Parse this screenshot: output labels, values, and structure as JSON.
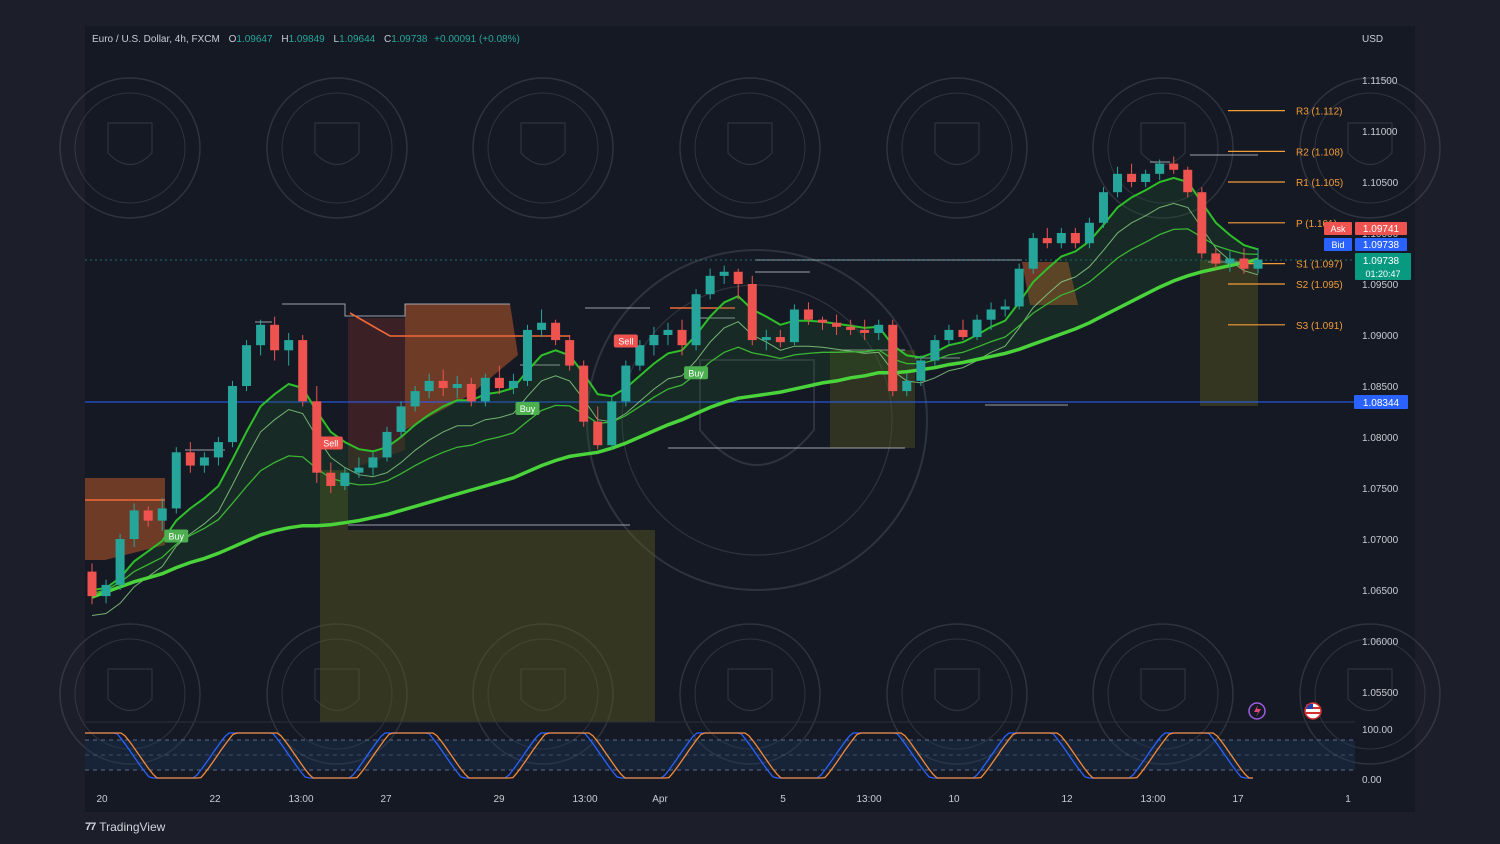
{
  "header": {
    "symbol": "Euro / U.S. Dollar, 4h, FXCM",
    "o_label": "O",
    "o_value": "1.09647",
    "h_label": "H",
    "h_value": "1.09849",
    "l_label": "L",
    "l_value": "1.09644",
    "c_label": "C",
    "c_value": "1.09738",
    "change": "+0.00091 (+0.08%)"
  },
  "price_axis": {
    "currency": "USD",
    "ticks": [
      "1.11500",
      "1.11000",
      "1.10500",
      "1.10000",
      "1.09500",
      "1.09000",
      "1.08500",
      "1.08000",
      "1.07500",
      "1.07000",
      "1.06500",
      "1.06000",
      "1.05500"
    ]
  },
  "pivots": [
    {
      "label": "R3 (1.112)",
      "value": 1.112
    },
    {
      "label": "R2 (1.108)",
      "value": 1.108
    },
    {
      "label": "R1 (1.105)",
      "value": 1.105
    },
    {
      "label": "P (1.101)",
      "value": 1.101
    },
    {
      "label": "S1 (1.097)",
      "value": 1.097
    },
    {
      "label": "S2 (1.095)",
      "value": 1.095
    },
    {
      "label": "S3 (1.091)",
      "value": 1.091
    }
  ],
  "quotes": {
    "ask_label": "Ask",
    "ask_value": "1.09741",
    "bid_label": "Bid",
    "bid_value": "1.09738",
    "last_value": "1.09738",
    "countdown": "01:20:47",
    "hline_value": "1.08344"
  },
  "signals": [
    {
      "label": "Buy",
      "type": "buy",
      "i": 6
    },
    {
      "label": "Sell",
      "type": "sell",
      "i": 17
    },
    {
      "label": "Buy",
      "type": "buy",
      "i": 31
    },
    {
      "label": "Sell",
      "type": "sell",
      "i": 38
    },
    {
      "label": "Buy",
      "type": "buy",
      "i": 43
    }
  ],
  "oscillator": {
    "ticks": [
      "100.00",
      "0.00"
    ]
  },
  "time_axis": {
    "labels": [
      "20",
      "22",
      "13:00",
      "27",
      "29",
      "13:00",
      "Apr",
      "5",
      "13:00",
      "10",
      "12",
      "13:00",
      "17",
      "1"
    ]
  },
  "branding": {
    "name": "TradingView"
  },
  "colors": {
    "up": "#26a69a",
    "down": "#ef5350",
    "ma": "#4ad33a",
    "accent": "#2962ff",
    "pivot": "#f29d38"
  },
  "chart_data": {
    "type": "candlestick",
    "symbol": "Euro / U.S. Dollar",
    "interval": "4h",
    "ylim": [
      1.051,
      1.119
    ],
    "x": [
      "20",
      "22",
      "13:00",
      "27",
      "29",
      "13:00",
      "Apr",
      "5",
      "13:00",
      "10",
      "12",
      "13:00",
      "17",
      "1"
    ],
    "candles": [
      {
        "o": 1.0668,
        "h": 1.0676,
        "l": 1.0636,
        "c": 1.0644
      },
      {
        "o": 1.0644,
        "h": 1.066,
        "l": 1.0637,
        "c": 1.0655
      },
      {
        "o": 1.0655,
        "h": 1.0705,
        "l": 1.065,
        "c": 1.07
      },
      {
        "o": 1.07,
        "h": 1.0735,
        "l": 1.0692,
        "c": 1.0728
      },
      {
        "o": 1.0728,
        "h": 1.0732,
        "l": 1.0712,
        "c": 1.0718
      },
      {
        "o": 1.0718,
        "h": 1.074,
        "l": 1.0708,
        "c": 1.073
      },
      {
        "o": 1.073,
        "h": 1.079,
        "l": 1.0725,
        "c": 1.0785
      },
      {
        "o": 1.0785,
        "h": 1.0795,
        "l": 1.0765,
        "c": 1.0772
      },
      {
        "o": 1.0772,
        "h": 1.0785,
        "l": 1.0765,
        "c": 1.078
      },
      {
        "o": 1.078,
        "h": 1.08,
        "l": 1.0772,
        "c": 1.0795
      },
      {
        "o": 1.0795,
        "h": 1.0855,
        "l": 1.079,
        "c": 1.085
      },
      {
        "o": 1.085,
        "h": 1.0895,
        "l": 1.0845,
        "c": 1.089
      },
      {
        "o": 1.089,
        "h": 1.0915,
        "l": 1.088,
        "c": 1.091
      },
      {
        "o": 1.091,
        "h": 1.0918,
        "l": 1.0875,
        "c": 1.0885
      },
      {
        "o": 1.0885,
        "h": 1.0902,
        "l": 1.087,
        "c": 1.0895
      },
      {
        "o": 1.0895,
        "h": 1.09,
        "l": 1.083,
        "c": 1.0835
      },
      {
        "o": 1.0835,
        "h": 1.085,
        "l": 1.0755,
        "c": 1.0765
      },
      {
        "o": 1.0765,
        "h": 1.0775,
        "l": 1.0745,
        "c": 1.0752
      },
      {
        "o": 1.0752,
        "h": 1.077,
        "l": 1.0748,
        "c": 1.0765
      },
      {
        "o": 1.0765,
        "h": 1.078,
        "l": 1.076,
        "c": 1.077
      },
      {
        "o": 1.077,
        "h": 1.0785,
        "l": 1.0762,
        "c": 1.078
      },
      {
        "o": 1.078,
        "h": 1.081,
        "l": 1.0776,
        "c": 1.0805
      },
      {
        "o": 1.0805,
        "h": 1.0835,
        "l": 1.08,
        "c": 1.083
      },
      {
        "o": 1.083,
        "h": 1.085,
        "l": 1.0825,
        "c": 1.0845
      },
      {
        "o": 1.0845,
        "h": 1.0862,
        "l": 1.0838,
        "c": 1.0855
      },
      {
        "o": 1.0855,
        "h": 1.0866,
        "l": 1.084,
        "c": 1.0848
      },
      {
        "o": 1.0848,
        "h": 1.086,
        "l": 1.0838,
        "c": 1.0852
      },
      {
        "o": 1.0852,
        "h": 1.0858,
        "l": 1.083,
        "c": 1.0835
      },
      {
        "o": 1.0835,
        "h": 1.0862,
        "l": 1.083,
        "c": 1.0858
      },
      {
        "o": 1.0858,
        "h": 1.087,
        "l": 1.0842,
        "c": 1.0848
      },
      {
        "o": 1.0848,
        "h": 1.0862,
        "l": 1.0842,
        "c": 1.0855
      },
      {
        "o": 1.0855,
        "h": 1.091,
        "l": 1.085,
        "c": 1.0905
      },
      {
        "o": 1.0905,
        "h": 1.0925,
        "l": 1.0898,
        "c": 1.0912
      },
      {
        "o": 1.0912,
        "h": 1.0915,
        "l": 1.089,
        "c": 1.0895
      },
      {
        "o": 1.0895,
        "h": 1.09,
        "l": 1.0865,
        "c": 1.087
      },
      {
        "o": 1.087,
        "h": 1.0875,
        "l": 1.081,
        "c": 1.0815
      },
      {
        "o": 1.0815,
        "h": 1.083,
        "l": 1.0788,
        "c": 1.0792
      },
      {
        "o": 1.0792,
        "h": 1.084,
        "l": 1.0788,
        "c": 1.0835
      },
      {
        "o": 1.0835,
        "h": 1.0875,
        "l": 1.083,
        "c": 1.087
      },
      {
        "o": 1.087,
        "h": 1.0895,
        "l": 1.0865,
        "c": 1.089
      },
      {
        "o": 1.089,
        "h": 1.0908,
        "l": 1.088,
        "c": 1.09
      },
      {
        "o": 1.09,
        "h": 1.0912,
        "l": 1.089,
        "c": 1.0905
      },
      {
        "o": 1.0905,
        "h": 1.0915,
        "l": 1.088,
        "c": 1.089
      },
      {
        "o": 1.089,
        "h": 1.0945,
        "l": 1.0885,
        "c": 1.094
      },
      {
        "o": 1.094,
        "h": 1.0965,
        "l": 1.0935,
        "c": 1.0958
      },
      {
        "o": 1.0958,
        "h": 1.0968,
        "l": 1.095,
        "c": 1.0962
      },
      {
        "o": 1.0962,
        "h": 1.0965,
        "l": 1.0935,
        "c": 1.095
      },
      {
        "o": 1.095,
        "h": 1.0958,
        "l": 1.089,
        "c": 1.0895
      },
      {
        "o": 1.0895,
        "h": 1.0905,
        "l": 1.0885,
        "c": 1.0898
      },
      {
        "o": 1.0898,
        "h": 1.0905,
        "l": 1.0888,
        "c": 1.0893
      },
      {
        "o": 1.0893,
        "h": 1.093,
        "l": 1.089,
        "c": 1.0925
      },
      {
        "o": 1.0925,
        "h": 1.0932,
        "l": 1.091,
        "c": 1.0915
      },
      {
        "o": 1.0915,
        "h": 1.0918,
        "l": 1.0905,
        "c": 1.0912
      },
      {
        "o": 1.0912,
        "h": 1.092,
        "l": 1.09,
        "c": 1.0908
      },
      {
        "o": 1.0908,
        "h": 1.0915,
        "l": 1.09,
        "c": 1.0905
      },
      {
        "o": 1.0905,
        "h": 1.0915,
        "l": 1.0895,
        "c": 1.0902
      },
      {
        "o": 1.0902,
        "h": 1.0915,
        "l": 1.0895,
        "c": 1.091
      },
      {
        "o": 1.091,
        "h": 1.0915,
        "l": 1.084,
        "c": 1.0845
      },
      {
        "o": 1.0845,
        "h": 1.0862,
        "l": 1.084,
        "c": 1.0855
      },
      {
        "o": 1.0855,
        "h": 1.088,
        "l": 1.085,
        "c": 1.0875
      },
      {
        "o": 1.0875,
        "h": 1.09,
        "l": 1.087,
        "c": 1.0895
      },
      {
        "o": 1.0895,
        "h": 1.091,
        "l": 1.089,
        "c": 1.0905
      },
      {
        "o": 1.0905,
        "h": 1.0915,
        "l": 1.0895,
        "c": 1.0898
      },
      {
        "o": 1.0898,
        "h": 1.092,
        "l": 1.0895,
        "c": 1.0915
      },
      {
        "o": 1.0915,
        "h": 1.0932,
        "l": 1.0905,
        "c": 1.0925
      },
      {
        "o": 1.0925,
        "h": 1.0935,
        "l": 1.0918,
        "c": 1.0928
      },
      {
        "o": 1.0928,
        "h": 1.097,
        "l": 1.0925,
        "c": 1.0965
      },
      {
        "o": 1.0965,
        "h": 1.1,
        "l": 1.096,
        "c": 1.0995
      },
      {
        "o": 1.0995,
        "h": 1.1005,
        "l": 1.0985,
        "c": 1.099
      },
      {
        "o": 1.099,
        "h": 1.1005,
        "l": 1.0985,
        "c": 1.1
      },
      {
        "o": 1.1,
        "h": 1.1005,
        "l": 1.0985,
        "c": 1.099
      },
      {
        "o": 1.099,
        "h": 1.1015,
        "l": 1.0985,
        "c": 1.101
      },
      {
        "o": 1.101,
        "h": 1.1045,
        "l": 1.1005,
        "c": 1.104
      },
      {
        "o": 1.104,
        "h": 1.1065,
        "l": 1.1035,
        "c": 1.1058
      },
      {
        "o": 1.1058,
        "h": 1.1068,
        "l": 1.1045,
        "c": 1.105
      },
      {
        "o": 1.105,
        "h": 1.1062,
        "l": 1.1045,
        "c": 1.1058
      },
      {
        "o": 1.1058,
        "h": 1.1072,
        "l": 1.1052,
        "c": 1.1068
      },
      {
        "o": 1.1068,
        "h": 1.1075,
        "l": 1.1058,
        "c": 1.1062
      },
      {
        "o": 1.1062,
        "h": 1.1065,
        "l": 1.1035,
        "c": 1.104
      },
      {
        "o": 1.104,
        "h": 1.1045,
        "l": 1.0975,
        "c": 1.098
      },
      {
        "o": 1.098,
        "h": 1.0985,
        "l": 1.0965,
        "c": 1.097
      },
      {
        "o": 1.097,
        "h": 1.0982,
        "l": 1.0962,
        "c": 1.0975
      },
      {
        "o": 1.0975,
        "h": 1.0985,
        "l": 1.096,
        "c": 1.0965
      },
      {
        "o": 1.0965,
        "h": 1.0985,
        "l": 1.096,
        "c": 1.0974
      }
    ],
    "ma_slow": [
      1.0643,
      1.0648,
      1.0653,
      1.0658,
      1.0662,
      1.0666,
      1.0672,
      1.0677,
      1.0681,
      1.0686,
      1.0692,
      1.0698,
      1.0704,
      1.0708,
      1.0711,
      1.0713,
      1.0713,
      1.0714,
      1.0716,
      1.0718,
      1.0721,
      1.0724,
      1.0728,
      1.0732,
      1.0736,
      1.074,
      1.0744,
      1.0748,
      1.0752,
      1.0756,
      1.076,
      1.0766,
      1.0772,
      1.0777,
      1.0781,
      1.0783,
      1.0785,
      1.0789,
      1.0794,
      1.08,
      1.0806,
      1.0812,
      1.0817,
      1.0823,
      1.0829,
      1.0834,
      1.0838,
      1.084,
      1.0842,
      1.0844,
      1.0847,
      1.085,
      1.0853,
      1.0855,
      1.0858,
      1.086,
      1.0863,
      1.0863,
      1.0864,
      1.0866,
      1.0868,
      1.0871,
      1.0873,
      1.0876,
      1.0879,
      1.0882,
      1.0886,
      1.0891,
      1.0896,
      1.0901,
      1.0906,
      1.0912,
      1.0919,
      1.0926,
      1.0933,
      1.094,
      1.0947,
      1.0953,
      1.0958,
      1.0962,
      1.0965,
      1.0968,
      1.0971,
      1.0974
    ],
    "ma_fast": [
      1.065,
      1.0652,
      1.0662,
      1.0678,
      1.0688,
      1.0698,
      1.0718,
      1.073,
      1.074,
      1.0752,
      1.0778,
      1.0805,
      1.083,
      1.0842,
      1.0852,
      1.0848,
      1.0825,
      1.0805,
      1.0795,
      1.0788,
      1.0786,
      1.079,
      1.08,
      1.0812,
      1.0822,
      1.083,
      1.0836,
      1.0836,
      1.0842,
      1.0844,
      1.0848,
      1.0865,
      1.088,
      1.0885,
      1.088,
      1.0862,
      1.0842,
      1.084,
      1.0848,
      1.086,
      1.0872,
      1.0882,
      1.0885,
      1.09,
      1.0918,
      1.0932,
      1.0938,
      1.0925,
      1.0918,
      1.091,
      1.0914,
      1.0914,
      1.0913,
      1.0911,
      1.0909,
      1.0907,
      1.0908,
      1.089,
      1.088,
      1.0878,
      1.0883,
      1.089,
      1.0893,
      1.09,
      1.0908,
      1.0914,
      1.0932,
      1.0952,
      1.0965,
      1.0977,
      1.0982,
      1.0992,
      1.1008,
      1.1025,
      1.1035,
      1.1042,
      1.105,
      1.1054,
      1.105,
      1.103,
      1.101,
      1.0998,
      1.0988,
      1.0984
    ]
  }
}
